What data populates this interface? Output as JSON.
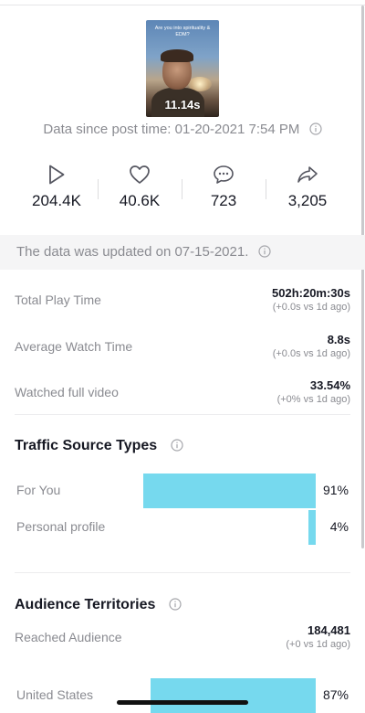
{
  "video": {
    "caption": "Are you into spirituality & EDM?",
    "duration": "11.14s"
  },
  "post_time": "Data since post time: 01-20-2021 7:54 PM",
  "stats": [
    {
      "icon": "play-icon",
      "value": "204.4K"
    },
    {
      "icon": "heart-icon",
      "value": "40.6K"
    },
    {
      "icon": "comment-icon",
      "value": "723"
    },
    {
      "icon": "share-icon",
      "value": "3,205"
    }
  ],
  "updated_notice": "The data was updated on 07-15-2021.",
  "metrics": [
    {
      "label": "Total Play Time",
      "value": "502h:20m:30s",
      "change": "(+0.0s vs 1d ago)"
    },
    {
      "label": "Average Watch Time",
      "value": "8.8s",
      "change": "(+0.0s vs 1d ago)"
    },
    {
      "label": "Watched full video",
      "value": "33.54%",
      "change": "(+0% vs 1d ago)"
    }
  ],
  "traffic": {
    "title": "Traffic Source Types",
    "rows": [
      {
        "label": "For You",
        "percent_label": "91%",
        "percent": 91
      },
      {
        "label": "Personal profile",
        "percent_label": "4%",
        "percent": 4
      }
    ]
  },
  "audience": {
    "title": "Audience Territories",
    "reached_label": "Reached Audience",
    "reached_value": "184,481",
    "reached_change": "(+0 vs 1d ago)",
    "rows": [
      {
        "label": "United States",
        "percent_label": "87%",
        "percent": 87
      }
    ]
  },
  "colors": {
    "bar": "#76d9ee",
    "muted_text": "#8a8b91",
    "primary_text": "#161823"
  }
}
